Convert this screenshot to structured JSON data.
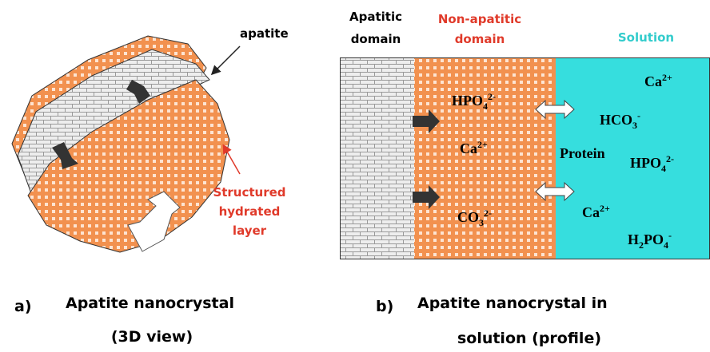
{
  "panel_a": {
    "apatite_label": "apatite",
    "layer_label": [
      "Structured",
      "hydrated",
      "layer"
    ],
    "caption": {
      "letter": "a)",
      "lines": [
        "Apatite nanocrystal",
        "(3D view)"
      ]
    }
  },
  "panel_b": {
    "headers": {
      "apatitic": [
        "Apatitic",
        "domain"
      ],
      "non_apatitic": [
        "Non-apatitic",
        "domain"
      ],
      "solution": "Solution"
    },
    "non_apatitic_ions": [
      [
        {
          "text": "HPO"
        },
        {
          "text": "4",
          "pos": "sub"
        },
        {
          "text": "2-",
          "pos": "sup"
        }
      ],
      [
        {
          "text": "Ca"
        },
        {
          "text": "2+",
          "pos": "sup"
        }
      ],
      [
        {
          "text": "CO"
        },
        {
          "text": "3",
          "pos": "sub"
        },
        {
          "text": "2-",
          "pos": "sup"
        }
      ]
    ],
    "solution_species": [
      [
        {
          "text": "Ca"
        },
        {
          "text": "2+",
          "pos": "sup"
        }
      ],
      [
        {
          "text": "HCO"
        },
        {
          "text": "3",
          "pos": "sub"
        },
        {
          "text": "-",
          "pos": "sup"
        }
      ],
      [
        {
          "text": "Protein"
        }
      ],
      [
        {
          "text": "HPO"
        },
        {
          "text": "4",
          "pos": "sub"
        },
        {
          "text": "2-",
          "pos": "sup"
        }
      ],
      [
        {
          "text": "Ca"
        },
        {
          "text": "2+",
          "pos": "sup"
        }
      ],
      [
        {
          "text": "H"
        },
        {
          "text": "2",
          "pos": "sub"
        },
        {
          "text": "PO"
        },
        {
          "text": "4",
          "pos": "sub"
        },
        {
          "text": "-",
          "pos": "sup"
        }
      ]
    ],
    "caption": {
      "letter": "b)",
      "lines": [
        "Apatite nanocrystal in",
        "solution (profile)"
      ]
    }
  }
}
